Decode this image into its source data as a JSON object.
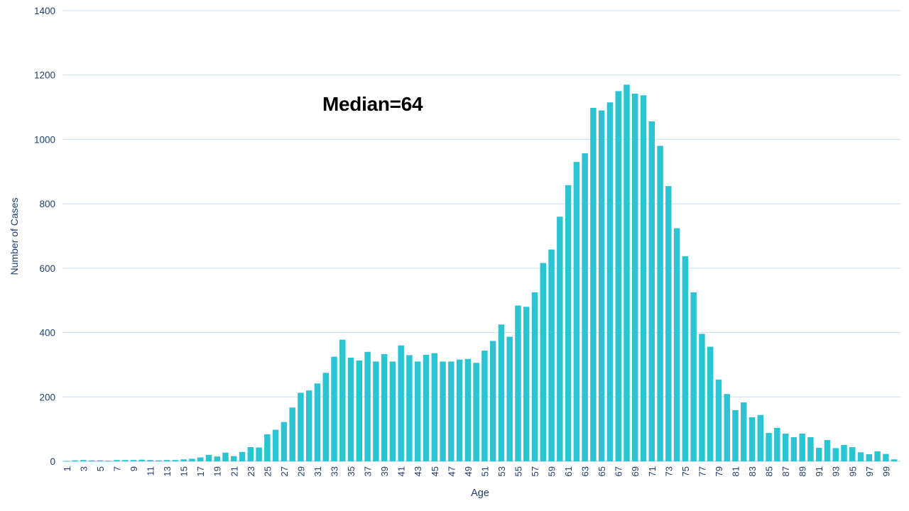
{
  "chart_data": {
    "type": "bar",
    "title": "",
    "annotation": "Median=64",
    "xlabel": "Age",
    "ylabel": "Number of Cases",
    "ylim": [
      0,
      1400
    ],
    "ytick_step": 200,
    "grid": true,
    "legend": "none",
    "bar_color": "#2BC4D2",
    "gridline_color": "#CBDFF2",
    "axis_line_color": "#BDD7EE",
    "axis_text_color": "#1F3E6E",
    "annotation_color": "#000000",
    "x": [
      1,
      2,
      3,
      4,
      5,
      6,
      7,
      8,
      9,
      10,
      11,
      12,
      13,
      14,
      15,
      16,
      17,
      18,
      19,
      20,
      21,
      22,
      23,
      24,
      25,
      26,
      27,
      28,
      29,
      30,
      31,
      32,
      33,
      34,
      35,
      36,
      37,
      38,
      39,
      40,
      41,
      42,
      43,
      44,
      45,
      46,
      47,
      48,
      49,
      50,
      51,
      52,
      53,
      54,
      55,
      56,
      57,
      58,
      59,
      60,
      61,
      62,
      63,
      64,
      65,
      66,
      67,
      68,
      69,
      70,
      71,
      72,
      73,
      74,
      75,
      76,
      77,
      78,
      79,
      80,
      81,
      82,
      83,
      84,
      85,
      86,
      87,
      88,
      89,
      90,
      91,
      92,
      93,
      94,
      95,
      96,
      97,
      98,
      99,
      100
    ],
    "values": [
      1,
      3,
      4,
      3,
      3,
      2,
      4,
      4,
      4,
      5,
      4,
      3,
      4,
      4,
      6,
      8,
      12,
      20,
      15,
      27,
      16,
      29,
      44,
      43,
      84,
      98,
      122,
      167,
      213,
      220,
      242,
      275,
      325,
      378,
      322,
      313,
      340,
      310,
      333,
      310,
      360,
      330,
      310,
      331,
      336,
      310,
      310,
      316,
      318,
      306,
      344,
      374,
      425,
      387,
      484,
      480,
      525,
      616,
      658,
      760,
      858,
      930,
      957,
      1098,
      1090,
      1115,
      1150,
      1170,
      1142,
      1137,
      1056,
      980,
      855,
      724,
      637,
      525,
      396,
      356,
      254,
      209,
      159,
      183,
      137,
      144,
      88,
      104,
      86,
      75,
      86,
      75,
      42,
      66,
      41,
      51,
      44,
      28,
      22,
      31,
      23,
      6
    ],
    "xtick_labels": [
      1,
      3,
      5,
      7,
      9,
      11,
      13,
      15,
      17,
      19,
      21,
      23,
      25,
      27,
      29,
      31,
      33,
      35,
      37,
      39,
      41,
      43,
      45,
      47,
      49,
      51,
      53,
      55,
      57,
      59,
      61,
      63,
      65,
      67,
      69,
      71,
      73,
      75,
      77,
      79,
      81,
      83,
      85,
      87,
      89,
      91,
      93,
      95,
      97,
      99
    ]
  }
}
